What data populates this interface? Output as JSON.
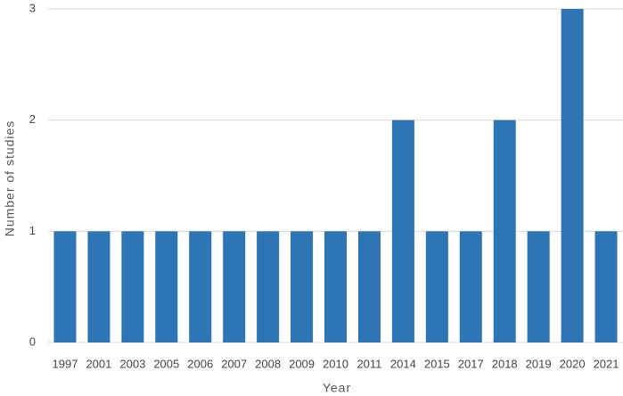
{
  "chart_data": {
    "type": "bar",
    "x_label": "Year",
    "y_label": "Number of studies",
    "categories": [
      "1997",
      "2001",
      "2003",
      "2005",
      "2006",
      "2007",
      "2008",
      "2009",
      "2010",
      "2011",
      "2014",
      "2015",
      "2017",
      "2018",
      "2019",
      "2020",
      "2021"
    ],
    "values": [
      1,
      1,
      1,
      1,
      1,
      1,
      1,
      1,
      1,
      1,
      2,
      1,
      1,
      2,
      1,
      3,
      1
    ],
    "color": "#2e75b6",
    "ylim": [
      0,
      3
    ],
    "yticks": [
      0,
      1,
      2,
      3
    ],
    "grid": true
  }
}
